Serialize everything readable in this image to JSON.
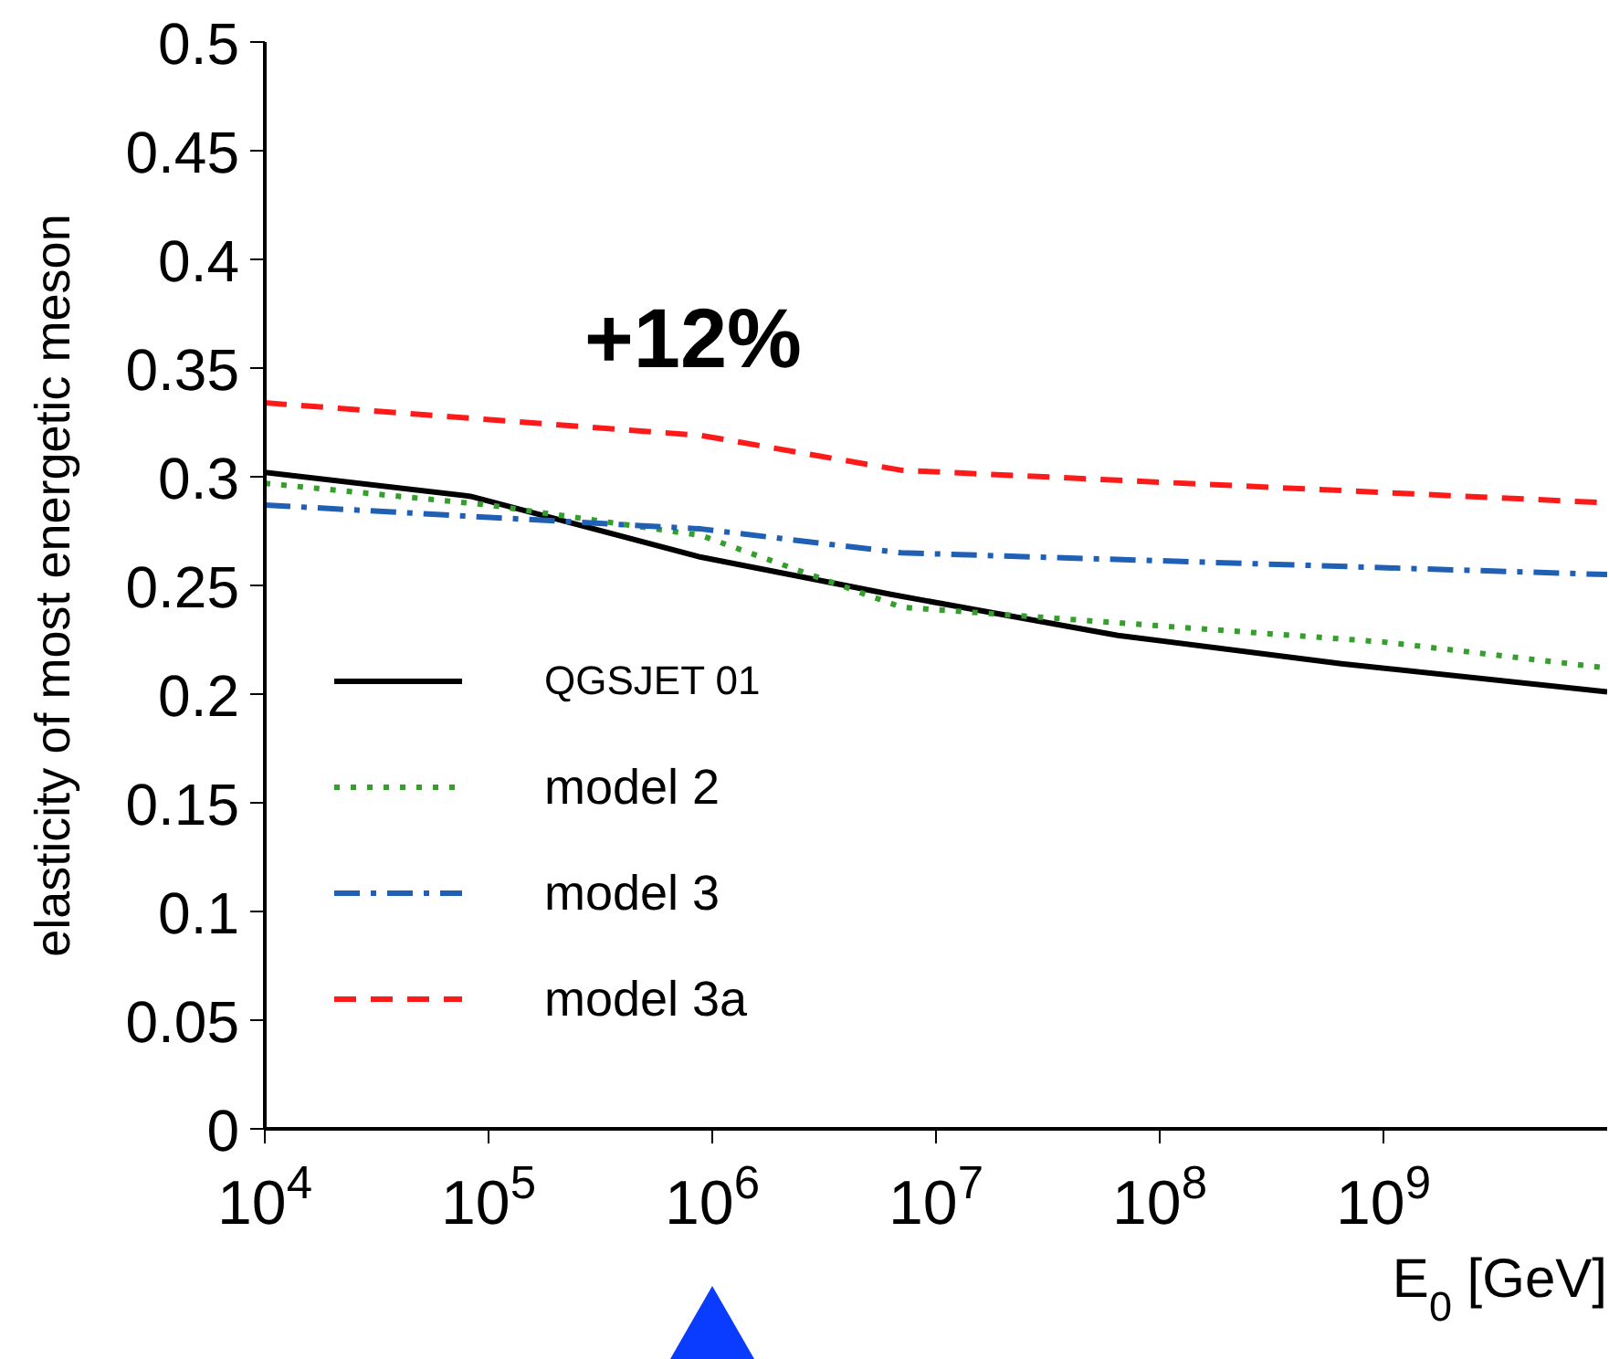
{
  "chart_data": {
    "type": "line",
    "xlabel": "E$_{0}$ [GeV]",
    "ylabel": "elasticity of most energetic meson",
    "annotations": [
      "+12%"
    ],
    "log": "x",
    "xlim": [
      10000,
      10000000000
    ],
    "xticks": [
      {
        "value": 10000,
        "label": "10$^{4}$"
      },
      {
        "value": 100000,
        "label": "10$^{5}$"
      },
      {
        "value": 1000000,
        "label": "10$^{6}$"
      },
      {
        "value": 10000000,
        "label": "10$^{7}$"
      },
      {
        "value": 100000000,
        "label": "10$^{8}$"
      },
      {
        "value": 1000000000,
        "label": "10$^{9}$"
      }
    ],
    "ylim": [
      0,
      0.5
    ],
    "yticks": [
      0,
      0.05,
      0.1,
      0.15,
      0.2,
      0.25,
      0.3,
      0.35,
      0.4,
      0.45,
      0.5
    ],
    "grid": false,
    "legend": "bottom left",
    "marker": "none",
    "series": [
      {
        "name": "QGSJET 01",
        "color": "#000000",
        "line_style": "solid",
        "x": [
          10000,
          83000,
          890000,
          6200000,
          65000000,
          650000000,
          10000000000
        ],
        "values": [
          0.302,
          0.291,
          0.263,
          0.246,
          0.227,
          0.214,
          0.201
        ]
      },
      {
        "name": "model 2",
        "color": "#33a02c",
        "line_style": "dotted",
        "x": [
          10000,
          100000,
          890000,
          7000000,
          1000000000,
          10000000000
        ],
        "values": [
          0.297,
          0.287,
          0.273,
          0.24,
          0.224,
          0.212
        ]
      },
      {
        "name": "model 3",
        "color": "#1f5fb4",
        "line_style": "dashdot",
        "x": [
          10000,
          890000,
          7000000,
          10000000000
        ],
        "values": [
          0.287,
          0.276,
          0.265,
          0.255
        ]
      },
      {
        "name": "model 3a",
        "color": "#ff1a1a",
        "line_style": "dashed",
        "x": [
          10000,
          890000,
          7000000,
          10000000000
        ],
        "values": [
          0.334,
          0.319,
          0.303,
          0.288
        ]
      }
    ]
  }
}
